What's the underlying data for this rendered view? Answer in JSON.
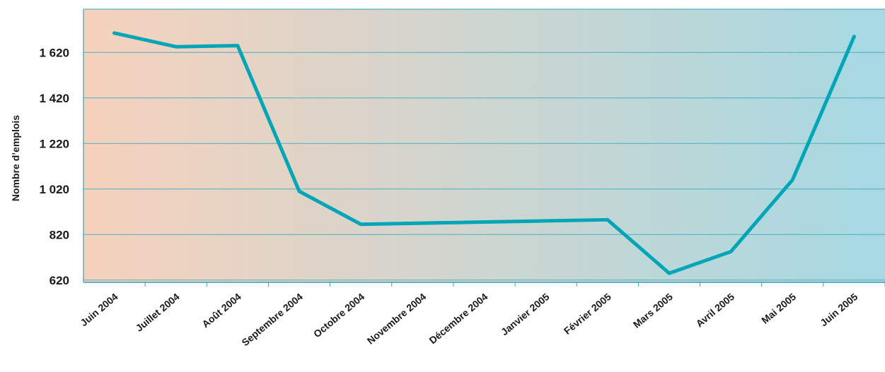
{
  "chart_data": {
    "type": "line",
    "title": "",
    "xlabel": "",
    "ylabel": "Nombre d’emplois",
    "categories": [
      "Juin 2004",
      "Juillet 2004",
      "Août 2004",
      "Septembre 2004",
      "Octobre 2004",
      "Novembre 2004",
      "Décembre 2004",
      "Janvier 2005",
      "Février 2005",
      "Mars 2005",
      "Avril 2005",
      "Mai 2005",
      "Juin 2005"
    ],
    "yticks": [
      620,
      820,
      1020,
      1220,
      1420,
      1620
    ],
    "ytick_labels": [
      "620",
      "820",
      "1 020",
      "1 220",
      "1 420",
      "1 620"
    ],
    "ylim": [
      610,
      1810
    ],
    "grid": true,
    "series": [
      {
        "values": [
          1705,
          1645,
          1650,
          1010,
          865,
          870,
          875,
          880,
          885,
          650,
          745,
          1060,
          1690
        ]
      }
    ],
    "colors": {
      "line": "#00a6b8",
      "gradient_left": "#f6d2bd",
      "gradient_right": "#a6d9e3",
      "gridline": "#4aaec0",
      "frame": "#3aa0b4"
    }
  }
}
